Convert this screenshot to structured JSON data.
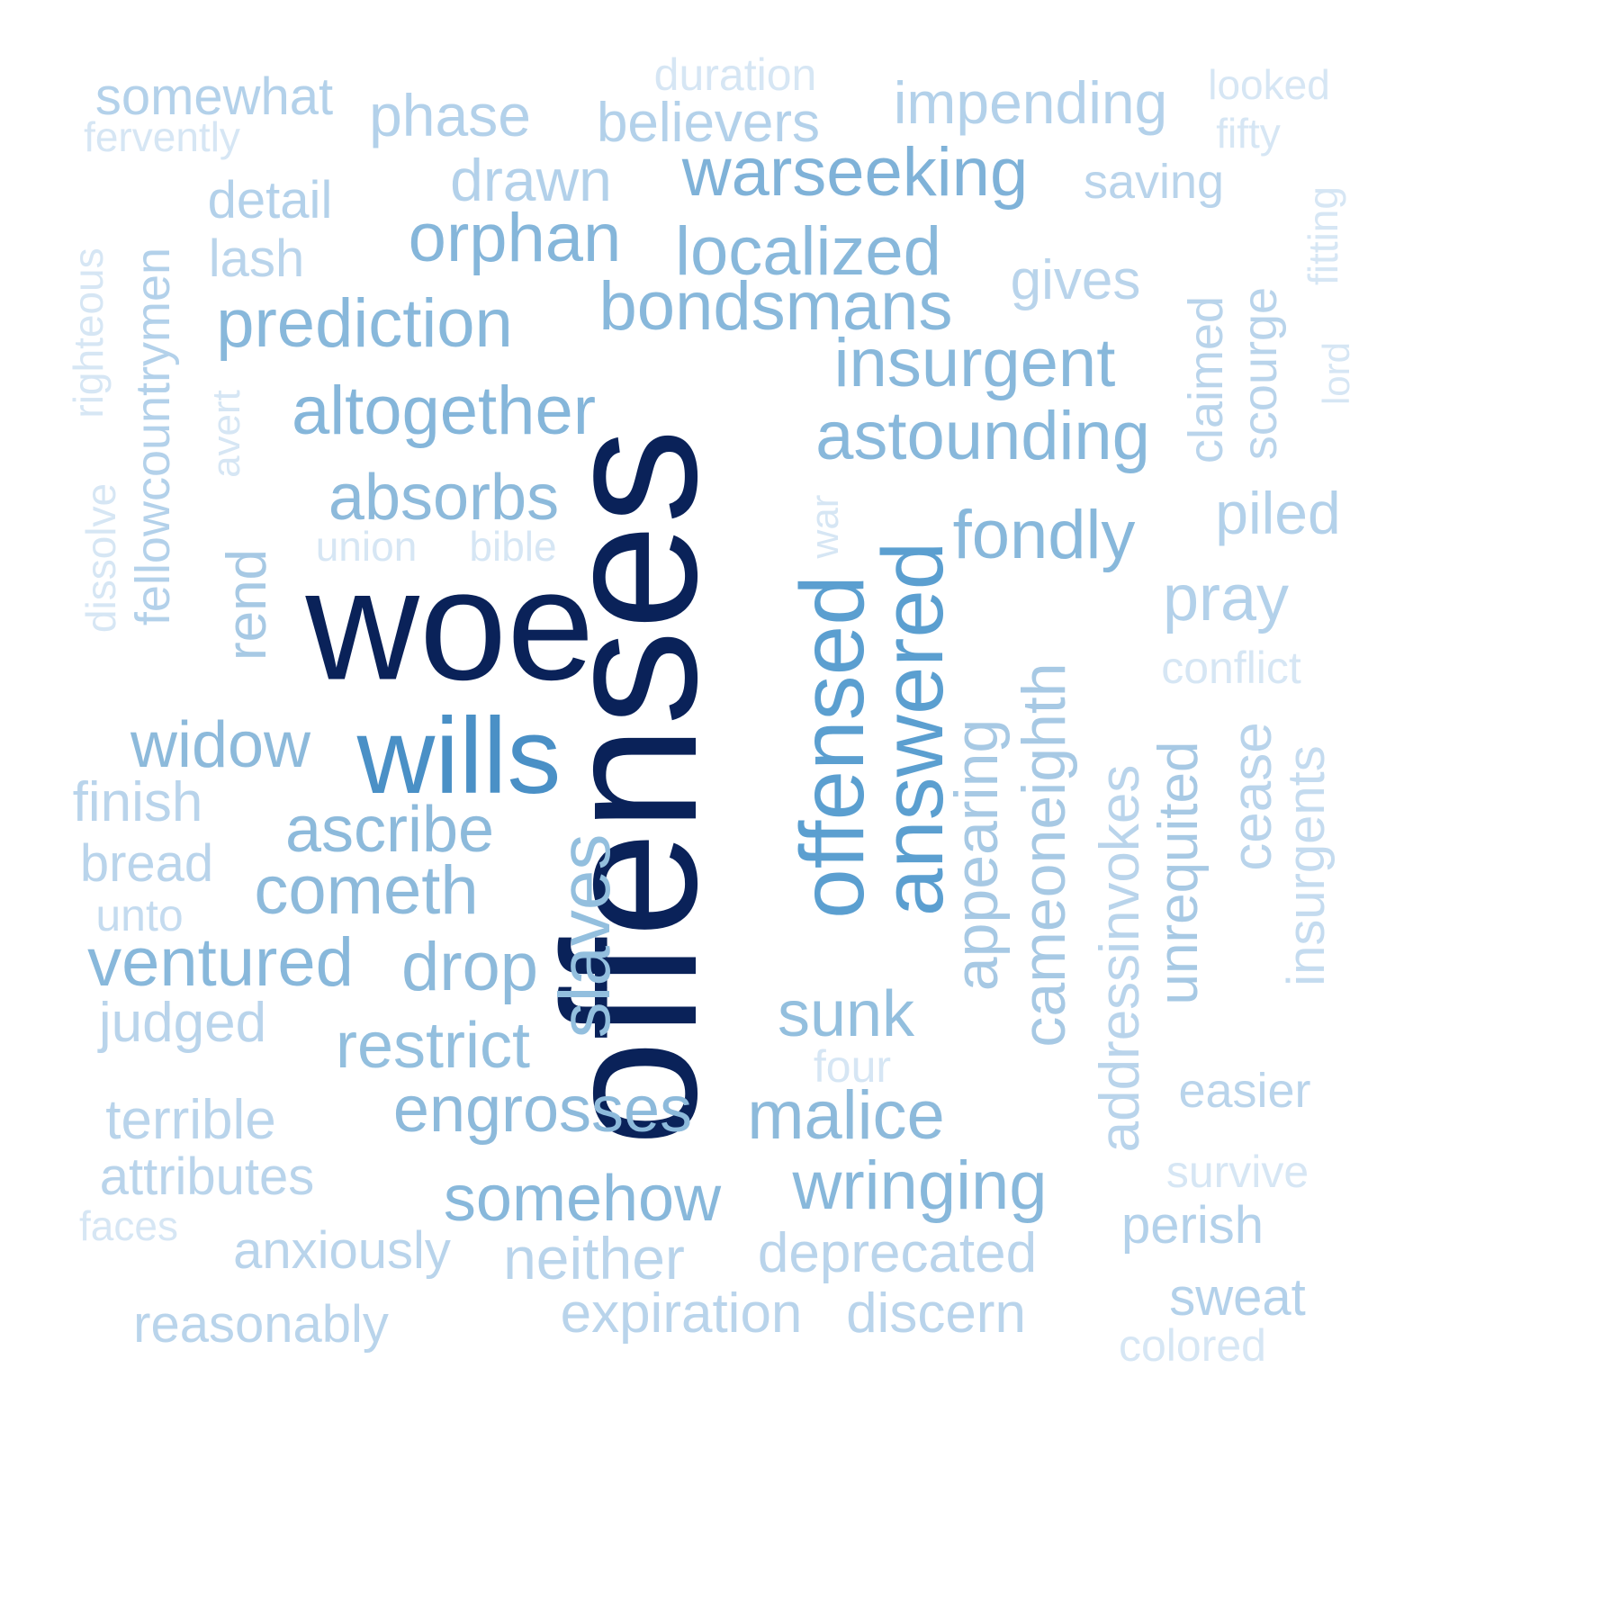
{
  "words": [
    {
      "text": "offenses",
      "color": "#0a2259"
    },
    {
      "text": "woe",
      "color": "#0a2259"
    },
    {
      "text": "wills",
      "color": "#4a90c6"
    },
    {
      "text": "offensed",
      "color": "#5b9fd0"
    },
    {
      "text": "answered",
      "color": "#5b9fd0"
    },
    {
      "text": "slaves",
      "color": "#93bfde"
    },
    {
      "text": "warseeking",
      "color": "#7fb2d8"
    },
    {
      "text": "orphan",
      "color": "#85b6da"
    },
    {
      "text": "localized",
      "color": "#88b8db"
    },
    {
      "text": "bondsmans",
      "color": "#88b8db"
    },
    {
      "text": "prediction",
      "color": "#88b8db"
    },
    {
      "text": "altogether",
      "color": "#85b6da"
    },
    {
      "text": "insurgent",
      "color": "#88b8db"
    },
    {
      "text": "astounding",
      "color": "#88b8db"
    },
    {
      "text": "absorbs",
      "color": "#8dbadb"
    },
    {
      "text": "fondly",
      "color": "#88b8db"
    },
    {
      "text": "widow",
      "color": "#8dbadb"
    },
    {
      "text": "ascribe",
      "color": "#8dbadb"
    },
    {
      "text": "cometh",
      "color": "#8dbadb"
    },
    {
      "text": "ventured",
      "color": "#88b8db"
    },
    {
      "text": "drop",
      "color": "#8dbadb"
    },
    {
      "text": "restrict",
      "color": "#93bfde"
    },
    {
      "text": "sunk",
      "color": "#93bfde"
    },
    {
      "text": "engrosses",
      "color": "#8dbadb"
    },
    {
      "text": "malice",
      "color": "#8dbadb"
    },
    {
      "text": "somehow",
      "color": "#88b8db"
    },
    {
      "text": "wringing",
      "color": "#88b8db"
    },
    {
      "text": "appearing",
      "color": "#a7c9e4"
    },
    {
      "text": "cameoneighth",
      "color": "#a7c9e4"
    },
    {
      "text": "addressinvokes",
      "color": "#b9d4eb"
    },
    {
      "text": "unrequited",
      "color": "#a7c9e4"
    },
    {
      "text": "cease",
      "color": "#b9d4eb"
    },
    {
      "text": "insurgents",
      "color": "#c4dbef"
    },
    {
      "text": "rend",
      "color": "#a7c9e4"
    },
    {
      "text": "pray",
      "color": "#b3d1ea"
    },
    {
      "text": "piled",
      "color": "#b3d1ea"
    },
    {
      "text": "gives",
      "color": "#b9d4eb"
    },
    {
      "text": "claimed",
      "color": "#b9d4eb"
    },
    {
      "text": "scourge",
      "color": "#b9d4eb"
    },
    {
      "text": "fitting",
      "color": "#d6e6f4"
    },
    {
      "text": "lord",
      "color": "#d6e6f4"
    },
    {
      "text": "conflict",
      "color": "#d6e6f4"
    },
    {
      "text": "easier",
      "color": "#b9d4eb"
    },
    {
      "text": "survive",
      "color": "#d6e6f4"
    },
    {
      "text": "perish",
      "color": "#b3d1ea"
    },
    {
      "text": "sweat",
      "color": "#b3d1ea"
    },
    {
      "text": "colored",
      "color": "#d6e6f4"
    },
    {
      "text": "somewhat",
      "color": "#b3d1ea"
    },
    {
      "text": "fervently",
      "color": "#d6e6f4"
    },
    {
      "text": "phase",
      "color": "#b3d1ea"
    },
    {
      "text": "duration",
      "color": "#d6e6f4"
    },
    {
      "text": "believers",
      "color": "#b3d1ea"
    },
    {
      "text": "impending",
      "color": "#b3d1ea"
    },
    {
      "text": "looked",
      "color": "#d6e6f4"
    },
    {
      "text": "fifty",
      "color": "#d6e6f4"
    },
    {
      "text": "saving",
      "color": "#b9d4eb"
    },
    {
      "text": "drawn",
      "color": "#b3d1ea"
    },
    {
      "text": "detail",
      "color": "#b3d1ea"
    },
    {
      "text": "lash",
      "color": "#b9d4eb"
    },
    {
      "text": "righteous",
      "color": "#d6e6f4"
    },
    {
      "text": "fellowcountrymen",
      "color": "#b3d1ea"
    },
    {
      "text": "dissolve",
      "color": "#d6e6f4"
    },
    {
      "text": "avert",
      "color": "#d6e6f4"
    },
    {
      "text": "union",
      "color": "#d6e6f4"
    },
    {
      "text": "bible",
      "color": "#d6e6f4"
    },
    {
      "text": "war",
      "color": "#d6e6f4"
    },
    {
      "text": "finish",
      "color": "#b9d4eb"
    },
    {
      "text": "bread",
      "color": "#b9d4eb"
    },
    {
      "text": "unto",
      "color": "#c4dbef"
    },
    {
      "text": "judged",
      "color": "#b9d4eb"
    },
    {
      "text": "four",
      "color": "#d6e6f4"
    },
    {
      "text": "terrible",
      "color": "#b9d4eb"
    },
    {
      "text": "attributes",
      "color": "#b9d4eb"
    },
    {
      "text": "faces",
      "color": "#d6e6f4"
    },
    {
      "text": "anxiously",
      "color": "#b9d4eb"
    },
    {
      "text": "neither",
      "color": "#b9d4eb"
    },
    {
      "text": "deprecated",
      "color": "#b9d4eb"
    },
    {
      "text": "reasonably",
      "color": "#b9d4eb"
    },
    {
      "text": "expiration",
      "color": "#b9d4eb"
    },
    {
      "text": "discern",
      "color": "#b9d4eb"
    }
  ]
}
